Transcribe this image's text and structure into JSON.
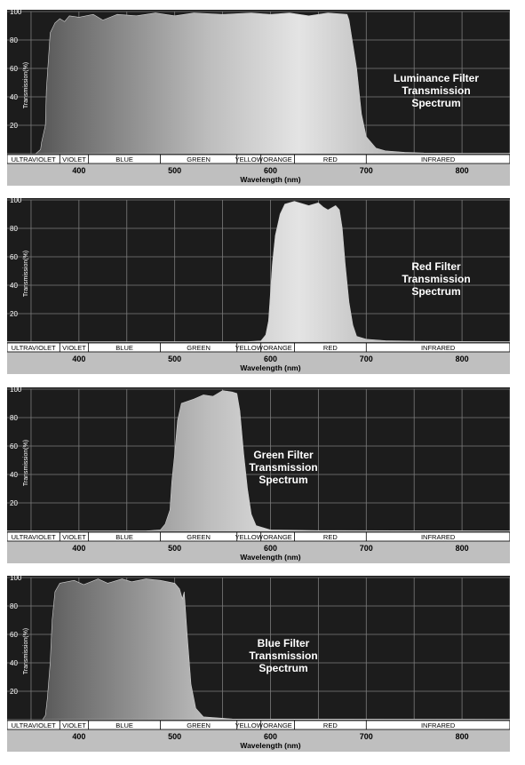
{
  "chart_data": [
    {
      "type": "area",
      "title_lines": [
        "Luminance Filter",
        "Transmission",
        "Spectrum"
      ],
      "xlabel": "Wavelength (nm)",
      "ylabel": "Transmission(%)",
      "xlim": [
        325,
        850
      ],
      "ylim": [
        0,
        100
      ],
      "xticks": [
        400,
        500,
        600,
        700,
        800
      ],
      "yticks": [
        20,
        40,
        60,
        80,
        100
      ],
      "x": [
        325,
        355,
        360,
        361,
        365,
        366,
        370,
        375,
        380,
        385,
        390,
        400,
        415,
        425,
        440,
        460,
        480,
        500,
        520,
        550,
        580,
        600,
        620,
        640,
        660,
        680,
        682,
        690,
        695,
        700,
        710,
        720,
        740,
        760,
        800,
        850
      ],
      "values": [
        0,
        0,
        3,
        8,
        20,
        45,
        85,
        92,
        95,
        93,
        97,
        96,
        98,
        94,
        98,
        97,
        99,
        97,
        99,
        98,
        99,
        98,
        99,
        97,
        99,
        98,
        94,
        60,
        28,
        12,
        4,
        2,
        1,
        0.5,
        0.3,
        0.3
      ]
    },
    {
      "type": "area",
      "title_lines": [
        "Red Filter",
        "Transmission",
        "Spectrum"
      ],
      "xlabel": "Wavelength (nm)",
      "ylabel": "Transmission(%)",
      "xlim": [
        325,
        850
      ],
      "ylim": [
        0,
        100
      ],
      "xticks": [
        400,
        500,
        600,
        700,
        800
      ],
      "yticks": [
        20,
        40,
        60,
        80,
        100
      ],
      "x": [
        325,
        575,
        590,
        595,
        598,
        600,
        602,
        605,
        610,
        615,
        625,
        640,
        650,
        655,
        660,
        668,
        672,
        675,
        678,
        682,
        686,
        690,
        700,
        720,
        760,
        850
      ],
      "values": [
        0.3,
        0.3,
        0.8,
        5,
        15,
        35,
        55,
        75,
        90,
        97,
        99,
        96,
        98,
        95,
        93,
        96,
        93,
        80,
        55,
        28,
        12,
        4,
        2,
        1,
        0.5,
        0.3
      ]
    },
    {
      "type": "area",
      "title_lines": [
        "Green Filter",
        "Transmission",
        "Spectrum"
      ],
      "xlabel": "Wavelength (nm)",
      "ylabel": "Transmission(%)",
      "xlim": [
        325,
        850
      ],
      "ylim": [
        0,
        100
      ],
      "xticks": [
        400,
        500,
        600,
        700,
        800
      ],
      "yticks": [
        20,
        40,
        60,
        80,
        100
      ],
      "x": [
        325,
        470,
        485,
        490,
        495,
        497,
        500,
        503,
        507,
        520,
        530,
        540,
        550,
        560,
        565,
        568,
        572,
        576,
        580,
        585,
        600,
        650,
        850
      ],
      "values": [
        0.3,
        0.3,
        1,
        5,
        15,
        35,
        55,
        78,
        90,
        93,
        96,
        95,
        99,
        98,
        97,
        85,
        55,
        30,
        12,
        4,
        1,
        0.5,
        0.3
      ]
    },
    {
      "type": "area",
      "title_lines": [
        "Blue Filter",
        "Transmission",
        "Spectrum"
      ],
      "xlabel": "Wavelength (nm)",
      "ylabel": "Transmission(%)",
      "xlim": [
        325,
        850
      ],
      "ylim": [
        0,
        100
      ],
      "xticks": [
        400,
        500,
        600,
        700,
        800
      ],
      "yticks": [
        20,
        40,
        60,
        80,
        100
      ],
      "x": [
        325,
        362,
        365,
        367,
        370,
        372,
        375,
        380,
        395,
        405,
        420,
        430,
        445,
        455,
        470,
        485,
        500,
        505,
        508,
        510,
        513,
        517,
        522,
        530,
        560,
        850
      ],
      "values": [
        0,
        0,
        3,
        15,
        40,
        70,
        90,
        96,
        98,
        95,
        99,
        96,
        99,
        97,
        99,
        98,
        96,
        92,
        85,
        90,
        60,
        25,
        8,
        2,
        0.5,
        0.3
      ]
    }
  ],
  "spectrum_bands": [
    {
      "label": "ULTRAVIOLET",
      "from": 325,
      "to": 380
    },
    {
      "label": "VIOLET",
      "from": 380,
      "to": 410
    },
    {
      "label": "BLUE",
      "from": 410,
      "to": 485
    },
    {
      "label": "GREEN",
      "from": 485,
      "to": 565
    },
    {
      "label": "YELLOW",
      "from": 565,
      "to": 590
    },
    {
      "label": "ORANGE",
      "from": 590,
      "to": 625
    },
    {
      "label": "RED",
      "from": 625,
      "to": 700
    },
    {
      "label": "INFRARED",
      "from": 700,
      "to": 850
    }
  ]
}
